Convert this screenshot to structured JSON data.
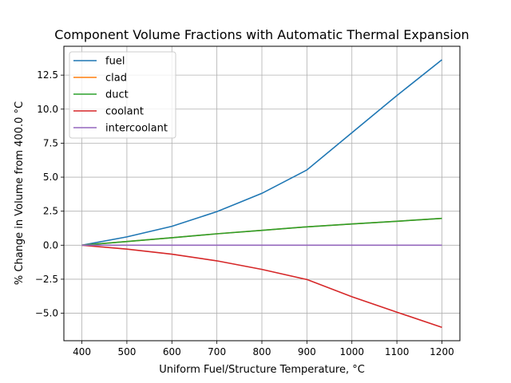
{
  "chart_data": {
    "type": "line",
    "title": "Component Volume Fractions with Automatic Thermal Expansion",
    "xlabel": "Uniform Fuel/Structure Temperature, °C",
    "ylabel": "% Change in Volume from 400.0 °C",
    "xlim": [
      360,
      1240
    ],
    "ylim": [
      -7.02,
      14.62
    ],
    "xticks": [
      400,
      500,
      600,
      700,
      800,
      900,
      1000,
      1100,
      1200
    ],
    "xtick_labels": [
      "400",
      "500",
      "600",
      "700",
      "800",
      "900",
      "1000",
      "1100",
      "1200"
    ],
    "yticks": [
      -5,
      -2.5,
      0,
      2.5,
      5,
      7.5,
      10,
      12.5
    ],
    "ytick_labels": [
      "−5.0",
      "−2.5",
      "0.0",
      "2.5",
      "5.0",
      "7.5",
      "10.0",
      "12.5"
    ],
    "grid": true,
    "legend_position": "upper-left",
    "x": [
      400,
      500,
      600,
      700,
      800,
      900,
      1000,
      1100,
      1200
    ],
    "series": [
      {
        "name": "fuel",
        "color": "#1f77b4",
        "values": [
          0,
          0.61,
          1.39,
          2.46,
          3.81,
          5.53,
          8.26,
          11.0,
          13.63
        ]
      },
      {
        "name": "clad",
        "color": "#ff7f0e",
        "values": [
          0,
          0.27,
          0.55,
          0.84,
          1.09,
          1.35,
          1.56,
          1.76,
          1.97
        ]
      },
      {
        "name": "duct",
        "color": "#2ca02c",
        "values": [
          0,
          0.27,
          0.55,
          0.84,
          1.09,
          1.35,
          1.56,
          1.76,
          1.97
        ]
      },
      {
        "name": "coolant",
        "color": "#d62728",
        "values": [
          0,
          -0.29,
          -0.66,
          -1.15,
          -1.78,
          -2.52,
          -3.79,
          -4.92,
          -6.04
        ]
      },
      {
        "name": "intercoolant",
        "color": "#9467bd",
        "values": [
          0,
          0,
          0,
          0,
          0,
          0,
          0,
          0,
          0
        ]
      }
    ]
  }
}
